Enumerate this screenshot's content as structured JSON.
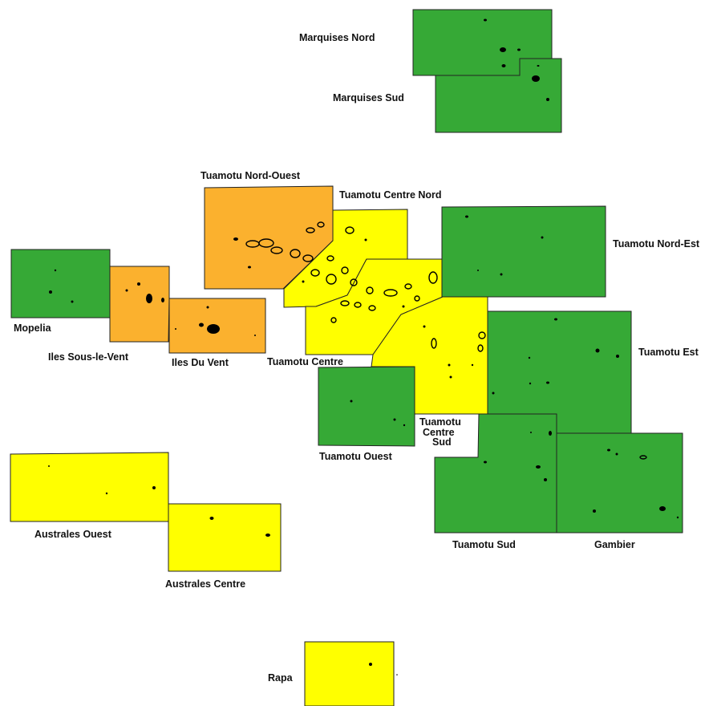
{
  "legend_colors": {
    "green": "#36a936",
    "orange": "#fbb12e",
    "yellow": "#ffff00"
  },
  "zones": [
    {
      "id": "marquises-nord",
      "label": "Marquises Nord",
      "color": "green"
    },
    {
      "id": "marquises-sud",
      "label": "Marquises Sud",
      "color": "green"
    },
    {
      "id": "tuamotu-nord-ouest",
      "label": "Tuamotu Nord-Ouest",
      "color": "orange"
    },
    {
      "id": "tuamotu-centre-nord",
      "label": "Tuamotu Centre Nord",
      "color": "yellow"
    },
    {
      "id": "tuamotu-nord-est",
      "label": "Tuamotu Nord-Est",
      "color": "green"
    },
    {
      "id": "mopelia",
      "label": "Mopelia",
      "color": "green"
    },
    {
      "id": "iles-sous-le-vent",
      "label": "Iles Sous-le-Vent",
      "color": "orange"
    },
    {
      "id": "iles-du-vent",
      "label": "Iles Du Vent",
      "color": "orange"
    },
    {
      "id": "tuamotu-centre",
      "label": "Tuamotu Centre",
      "color": "yellow"
    },
    {
      "id": "tuamotu-est",
      "label": "Tuamotu Est",
      "color": "green"
    },
    {
      "id": "tuamotu-ouest",
      "label": "Tuamotu Ouest",
      "color": "green"
    },
    {
      "id": "tuamotu-centre-sud",
      "label_lines": [
        "Tuamotu",
        "Centre",
        "Sud"
      ],
      "color": "yellow"
    },
    {
      "id": "tuamotu-sud",
      "label": "Tuamotu Sud",
      "color": "green"
    },
    {
      "id": "gambier",
      "label": "Gambier",
      "color": "green"
    },
    {
      "id": "australes-ouest",
      "label": "Australes Ouest",
      "color": "yellow"
    },
    {
      "id": "australes-centre",
      "label": "Australes Centre",
      "color": "yellow"
    },
    {
      "id": "rapa",
      "label": "Rapa",
      "color": "yellow"
    }
  ]
}
